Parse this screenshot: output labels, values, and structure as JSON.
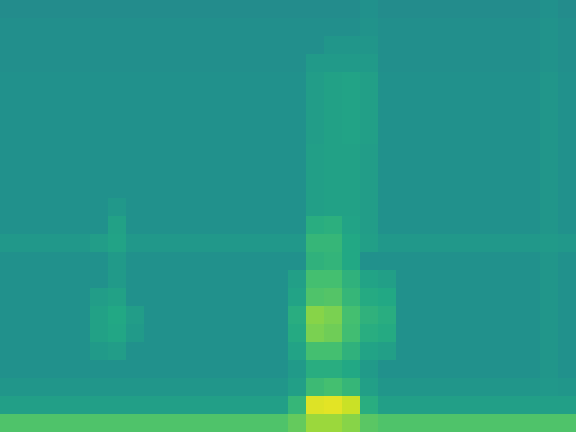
{
  "chart_data": {
    "type": "heatmap",
    "tick_labels": false,
    "zlim": [
      0,
      100
    ],
    "cells": [
      [
        48,
        48,
        48,
        48,
        48,
        48,
        48,
        48,
        48,
        48,
        48,
        48,
        48,
        48,
        48,
        48,
        48,
        48,
        48,
        48,
        50,
        48,
        48,
        48,
        48,
        48,
        48,
        48,
        48,
        48,
        50,
        48
      ],
      [
        49,
        49,
        49,
        49,
        49,
        49,
        49,
        49,
        49,
        49,
        49,
        49,
        49,
        49,
        49,
        49,
        49,
        49,
        49,
        49,
        51,
        49,
        49,
        49,
        49,
        49,
        49,
        49,
        49,
        49,
        51,
        49
      ],
      [
        49,
        49,
        49,
        49,
        49,
        49,
        49,
        49,
        49,
        49,
        49,
        49,
        49,
        49,
        49,
        49,
        49,
        49,
        52,
        52,
        52,
        49,
        49,
        49,
        49,
        49,
        49,
        49,
        49,
        49,
        51,
        49
      ],
      [
        49,
        49,
        49,
        49,
        49,
        49,
        49,
        49,
        49,
        49,
        49,
        49,
        49,
        49,
        49,
        49,
        49,
        54,
        54,
        54,
        54,
        49,
        49,
        49,
        49,
        49,
        49,
        49,
        49,
        49,
        51,
        49
      ],
      [
        50,
        50,
        50,
        50,
        50,
        50,
        50,
        50,
        50,
        50,
        50,
        50,
        50,
        50,
        50,
        50,
        50,
        55,
        57,
        58,
        56,
        50,
        50,
        50,
        50,
        50,
        50,
        50,
        50,
        50,
        52,
        50
      ],
      [
        50,
        50,
        50,
        50,
        50,
        50,
        50,
        50,
        50,
        50,
        50,
        50,
        50,
        50,
        50,
        50,
        50,
        55,
        57,
        58,
        56,
        50,
        50,
        50,
        50,
        50,
        50,
        50,
        50,
        50,
        52,
        50
      ],
      [
        50,
        50,
        50,
        50,
        50,
        50,
        50,
        50,
        50,
        50,
        50,
        50,
        50,
        50,
        50,
        50,
        50,
        55,
        57,
        58,
        56,
        50,
        50,
        50,
        50,
        50,
        50,
        50,
        50,
        50,
        52,
        50
      ],
      [
        50,
        50,
        50,
        50,
        50,
        50,
        50,
        50,
        50,
        50,
        50,
        50,
        50,
        50,
        50,
        50,
        50,
        55,
        57,
        58,
        56,
        50,
        50,
        50,
        50,
        50,
        50,
        50,
        50,
        50,
        52,
        50
      ],
      [
        50,
        50,
        50,
        50,
        50,
        50,
        50,
        50,
        50,
        50,
        50,
        50,
        50,
        50,
        50,
        50,
        50,
        56,
        57,
        57,
        55,
        50,
        50,
        50,
        50,
        50,
        50,
        50,
        50,
        50,
        52,
        50
      ],
      [
        50,
        50,
        50,
        50,
        50,
        50,
        50,
        50,
        50,
        50,
        50,
        50,
        50,
        50,
        50,
        50,
        50,
        56,
        57,
        57,
        55,
        50,
        50,
        50,
        50,
        50,
        50,
        50,
        50,
        50,
        52,
        50
      ],
      [
        50,
        50,
        50,
        50,
        50,
        50,
        50,
        50,
        50,
        50,
        50,
        50,
        50,
        50,
        50,
        50,
        50,
        56,
        57,
        57,
        55,
        50,
        50,
        50,
        50,
        50,
        50,
        50,
        50,
        50,
        52,
        50
      ],
      [
        50,
        50,
        50,
        50,
        50,
        50,
        53,
        50,
        50,
        50,
        50,
        50,
        50,
        50,
        50,
        50,
        50,
        56,
        57,
        57,
        55,
        50,
        50,
        50,
        50,
        50,
        50,
        50,
        50,
        50,
        52,
        50
      ],
      [
        50,
        50,
        50,
        50,
        50,
        50,
        57,
        50,
        50,
        50,
        50,
        50,
        50,
        50,
        50,
        50,
        50,
        62,
        63,
        58,
        55,
        50,
        50,
        50,
        50,
        50,
        50,
        50,
        50,
        50,
        52,
        50
      ],
      [
        53,
        53,
        53,
        53,
        53,
        55,
        58,
        53,
        53,
        53,
        53,
        53,
        53,
        53,
        53,
        53,
        53,
        66,
        66,
        60,
        56,
        53,
        53,
        53,
        53,
        53,
        53,
        53,
        53,
        53,
        54,
        53
      ],
      [
        50,
        50,
        50,
        50,
        50,
        50,
        54,
        50,
        50,
        50,
        50,
        50,
        50,
        50,
        50,
        50,
        50,
        64,
        65,
        60,
        50,
        50,
        50,
        50,
        50,
        50,
        50,
        50,
        50,
        50,
        52,
        50
      ],
      [
        50,
        50,
        50,
        50,
        50,
        50,
        54,
        50,
        50,
        50,
        50,
        50,
        50,
        50,
        50,
        50,
        56,
        70,
        70,
        64,
        58,
        56,
        50,
        50,
        50,
        50,
        50,
        50,
        50,
        50,
        52,
        50
      ],
      [
        50,
        50,
        50,
        50,
        50,
        55,
        57,
        50,
        50,
        50,
        50,
        50,
        50,
        50,
        50,
        50,
        58,
        72,
        73,
        66,
        61,
        60,
        50,
        50,
        50,
        50,
        50,
        50,
        50,
        50,
        52,
        50
      ],
      [
        50,
        50,
        50,
        50,
        50,
        57,
        60,
        55,
        50,
        50,
        50,
        50,
        50,
        50,
        50,
        50,
        62,
        82,
        80,
        70,
        64,
        62,
        50,
        50,
        50,
        50,
        50,
        50,
        50,
        50,
        52,
        50
      ],
      [
        50,
        50,
        50,
        50,
        50,
        57,
        59,
        54,
        50,
        50,
        50,
        50,
        50,
        50,
        50,
        50,
        61,
        80,
        78,
        69,
        62,
        61,
        50,
        50,
        50,
        50,
        50,
        50,
        50,
        50,
        52,
        50
      ],
      [
        50,
        50,
        50,
        50,
        50,
        54,
        55,
        50,
        50,
        50,
        50,
        50,
        50,
        50,
        50,
        50,
        58,
        70,
        70,
        64,
        58,
        56,
        50,
        50,
        50,
        50,
        50,
        50,
        50,
        50,
        52,
        50
      ],
      [
        50,
        50,
        50,
        50,
        50,
        50,
        50,
        50,
        50,
        50,
        50,
        50,
        50,
        50,
        50,
        50,
        54,
        62,
        62,
        60,
        54,
        50,
        50,
        50,
        50,
        50,
        50,
        50,
        50,
        50,
        52,
        50
      ],
      [
        52,
        52,
        52,
        52,
        52,
        52,
        52,
        52,
        52,
        52,
        52,
        52,
        52,
        52,
        52,
        52,
        56,
        68,
        70,
        66,
        56,
        52,
        52,
        52,
        52,
        52,
        52,
        52,
        52,
        52,
        53,
        52
      ],
      [
        56,
        56,
        56,
        56,
        56,
        56,
        56,
        56,
        56,
        56,
        56,
        56,
        56,
        56,
        56,
        56,
        66,
        95,
        96,
        92,
        62,
        56,
        56,
        56,
        56,
        56,
        56,
        56,
        56,
        56,
        56,
        56
      ],
      [
        72,
        72,
        72,
        72,
        72,
        72,
        72,
        72,
        72,
        72,
        72,
        72,
        72,
        72,
        72,
        72,
        76,
        85,
        85,
        82,
        74,
        72,
        72,
        72,
        72,
        72,
        72,
        72,
        72,
        72,
        72,
        72
      ]
    ]
  }
}
